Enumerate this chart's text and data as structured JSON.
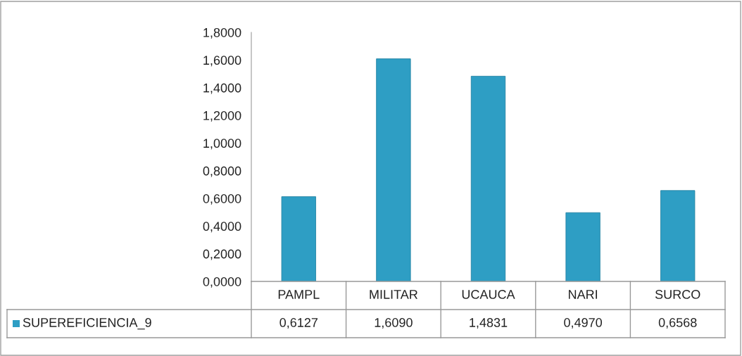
{
  "chart_data": {
    "type": "bar",
    "categories": [
      "PAMPL",
      "MILITAR",
      "UCAUCA",
      "NARI",
      "SURCO"
    ],
    "series": [
      {
        "name": "SUPEREFICIENCIA_9",
        "color": "#2e9ec4",
        "values": [
          0.6127,
          1.609,
          1.4831,
          0.497,
          0.6568
        ],
        "value_labels": [
          "0,6127",
          "1,6090",
          "1,4831",
          "0,4970",
          "0,6568"
        ]
      }
    ],
    "ylim": [
      0,
      1.8
    ],
    "yticks": [
      {
        "value": 0,
        "label": "0,0000"
      },
      {
        "value": 0.2,
        "label": "0,2000"
      },
      {
        "value": 0.4,
        "label": "0,4000"
      },
      {
        "value": 0.6,
        "label": "0,6000"
      },
      {
        "value": 0.8,
        "label": "0,8000"
      },
      {
        "value": 1.0,
        "label": "1,0000"
      },
      {
        "value": 1.2,
        "label": "1,2000"
      },
      {
        "value": 1.4,
        "label": "1,4000"
      },
      {
        "value": 1.6,
        "label": "1,6000"
      },
      {
        "value": 1.8,
        "label": "1,8000"
      }
    ],
    "grid": false,
    "legend": "bottom left"
  }
}
